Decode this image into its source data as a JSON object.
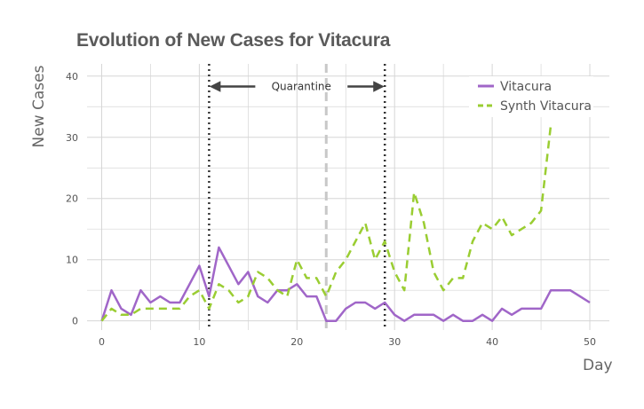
{
  "chart_data": {
    "type": "line",
    "title": "Evolution of New Cases for Vitacura",
    "xlabel": "Day",
    "ylabel": "New Cases",
    "xlim": [
      -1.5,
      52
    ],
    "ylim": [
      -1.5,
      42
    ],
    "xticks": [
      0,
      10,
      20,
      30,
      40,
      50
    ],
    "yticks": [
      0,
      10,
      20,
      30,
      40
    ],
    "grid": true,
    "legend_position": "top-right",
    "series": [
      {
        "name": "Vitacura",
        "color": "#a066c8",
        "style": "solid",
        "x": [
          0,
          1,
          2,
          3,
          4,
          5,
          6,
          7,
          8,
          9,
          10,
          11,
          12,
          13,
          14,
          15,
          16,
          17,
          18,
          19,
          20,
          21,
          22,
          23,
          24,
          25,
          26,
          27,
          28,
          29,
          30,
          31,
          32,
          33,
          34,
          35,
          36,
          37,
          38,
          39,
          40,
          41,
          42,
          43,
          44,
          45,
          46,
          47,
          48,
          49,
          50
        ],
        "values": [
          0,
          5,
          2,
          1,
          5,
          3,
          4,
          3,
          3,
          6,
          9,
          4,
          12,
          9,
          6,
          8,
          4,
          3,
          5,
          5,
          6,
          4,
          4,
          0,
          0,
          2,
          3,
          3,
          2,
          3,
          1,
          0,
          1,
          1,
          1,
          0,
          1,
          0,
          0,
          1,
          0,
          2,
          1,
          2,
          2,
          2,
          5,
          5,
          5,
          4,
          3
        ]
      },
      {
        "name": "Synth Vitacura",
        "color": "#9acd32",
        "style": "dashed",
        "x": [
          0,
          1,
          2,
          3,
          4,
          5,
          6,
          7,
          8,
          9,
          10,
          11,
          12,
          13,
          14,
          15,
          16,
          17,
          18,
          19,
          20,
          21,
          22,
          23,
          24,
          25,
          26,
          27,
          28,
          29,
          30,
          31,
          32,
          33,
          34,
          35,
          36,
          37,
          38,
          39,
          40,
          41,
          42,
          43,
          44,
          45,
          46
        ],
        "values": [
          0,
          2,
          1,
          1,
          2,
          2,
          2,
          2,
          2,
          4,
          5,
          2,
          6,
          5,
          3,
          4,
          8,
          7,
          5,
          4,
          10,
          7,
          7,
          4,
          8,
          10,
          13,
          16,
          10,
          13,
          8,
          5,
          21,
          16,
          8,
          5,
          7,
          7,
          13,
          16,
          15,
          17,
          14,
          15,
          16,
          18,
          32
        ]
      }
    ],
    "annotations": {
      "quarantine_start": 11,
      "quarantine_end": 29,
      "reference_line": 23,
      "label": "Quarantine"
    }
  }
}
